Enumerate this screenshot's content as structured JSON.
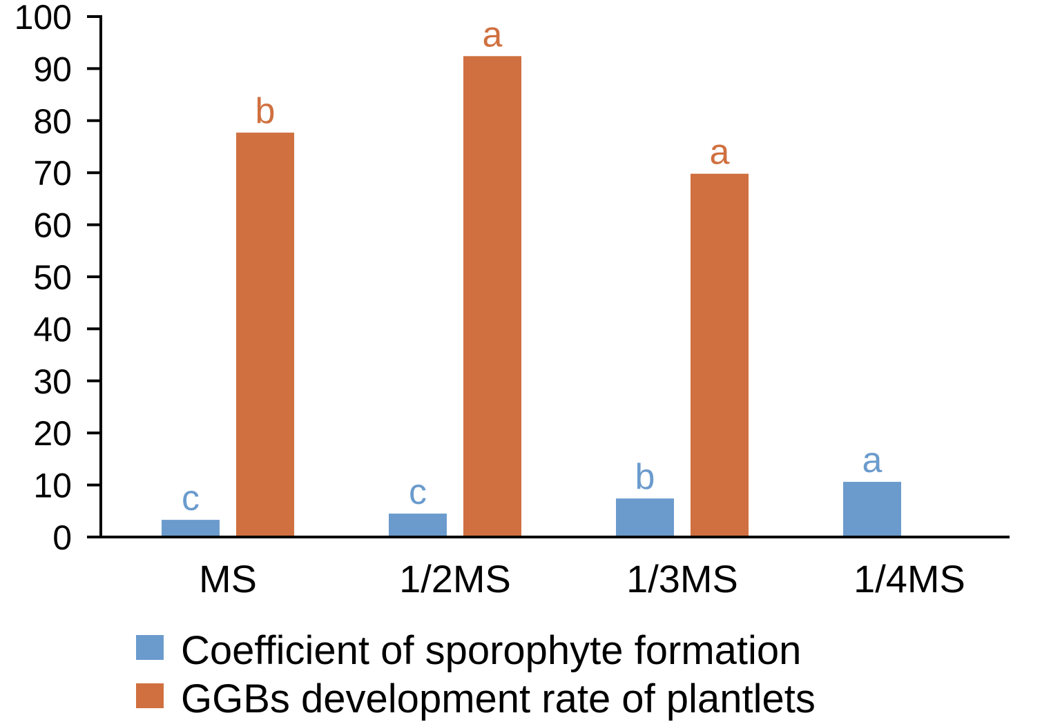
{
  "chart_data": {
    "type": "bar",
    "categories": [
      "MS",
      "1/2MS",
      "1/3MS",
      "1/4MS"
    ],
    "series": [
      {
        "name": "Coefficient of sporophyte formation",
        "color": "#6b9bcd",
        "values": [
          3.3,
          4.5,
          7.4,
          10.6
        ],
        "labels": [
          "c",
          "c",
          "b",
          "a"
        ]
      },
      {
        "name": "GGBs development rate of plantlets",
        "color": "#d07040",
        "values": [
          77.7,
          92.4,
          69.8,
          null
        ],
        "labels": [
          "b",
          "a",
          "a",
          ""
        ]
      }
    ],
    "ylim": [
      0,
      100
    ],
    "yticks": [
      0,
      10,
      20,
      30,
      40,
      50,
      60,
      70,
      80,
      90,
      100
    ],
    "title": "",
    "xlabel": "",
    "ylabel": "",
    "grid": false,
    "legend": "bottom"
  }
}
